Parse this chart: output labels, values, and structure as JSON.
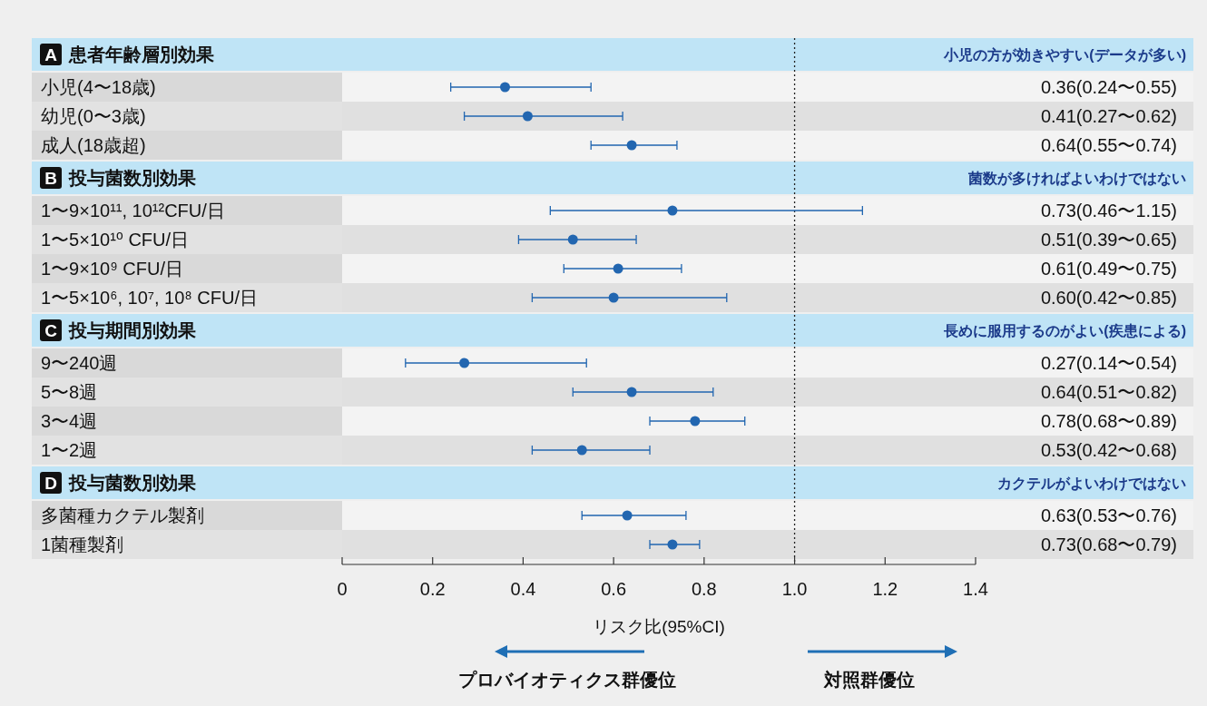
{
  "chart_data": {
    "type": "scatter",
    "orientation": "horizontal",
    "marker": "circle",
    "color": "#2266b0",
    "categories": [
      "A 患者年齢層別効果",
      "小児(4〜18歳)",
      "幼児(0〜3歳)",
      "成人(18歳超)",
      "B 投与菌数別効果",
      "1〜9×10¹¹, 10¹²CFU/日",
      "1〜5×10¹⁰ CFU/日",
      "1〜9×10⁹ CFU/日",
      "1〜5×10⁶, 10⁷, 10⁸ CFU/日",
      "C 投与期間別効果",
      "9〜240週",
      "5〜8週",
      "3〜4週",
      "1〜2週",
      "D 投与菌数別効果",
      "多菌種カクテル製剤",
      "1菌種製剤"
    ],
    "values": [
      null,
      0.36,
      0.41,
      0.64,
      null,
      0.73,
      0.51,
      0.61,
      0.6,
      null,
      0.27,
      0.64,
      0.78,
      0.53,
      null,
      0.63,
      0.73
    ],
    "errors": [
      null,
      [
        0.24,
        0.55
      ],
      [
        0.27,
        0.62
      ],
      [
        0.55,
        0.74
      ],
      null,
      [
        0.46,
        1.15
      ],
      [
        0.39,
        0.65
      ],
      [
        0.49,
        0.75
      ],
      [
        0.42,
        0.85
      ],
      null,
      [
        0.14,
        0.54
      ],
      [
        0.51,
        0.82
      ],
      [
        0.68,
        0.89
      ],
      [
        0.42,
        0.68
      ],
      null,
      [
        0.53,
        0.76
      ],
      [
        0.68,
        0.79
      ]
    ],
    "value_labels": [
      null,
      "0.36(0.24〜0.55)",
      "0.41(0.27〜0.62)",
      "0.64(0.55〜0.74)",
      null,
      "0.73(0.46〜1.15)",
      "0.51(0.39〜0.65)",
      "0.61(0.49〜0.75)",
      "0.60(0.42〜0.85)",
      null,
      "0.27(0.14〜0.54)",
      "0.64(0.51〜0.82)",
      "0.78(0.68〜0.89)",
      "0.53(0.42〜0.68)",
      null,
      "0.63(0.53〜0.76)",
      "0.73(0.68〜0.79)"
    ],
    "xlim": [
      0,
      1.4
    ],
    "xticks": [
      0,
      0.2,
      0.4,
      0.6,
      0.8,
      {
        "value": 1,
        "label": "1.0"
      },
      1.2,
      1.4
    ],
    "xlabel": "リスク比(95%CI)",
    "ref_lines": [
      {
        "axis": "x",
        "value": 1,
        "line_style": "dotted",
        "color": "#222222"
      }
    ],
    "annotations": [
      "小児の方が効きやすい(データが多い)",
      "菌数が多ければよいわけではない",
      "長めに服用するのがよい(疾患による)",
      "カクテルがよいわけではない",
      "プロバイオティクス群優位",
      "対照群優位"
    ]
  }
}
